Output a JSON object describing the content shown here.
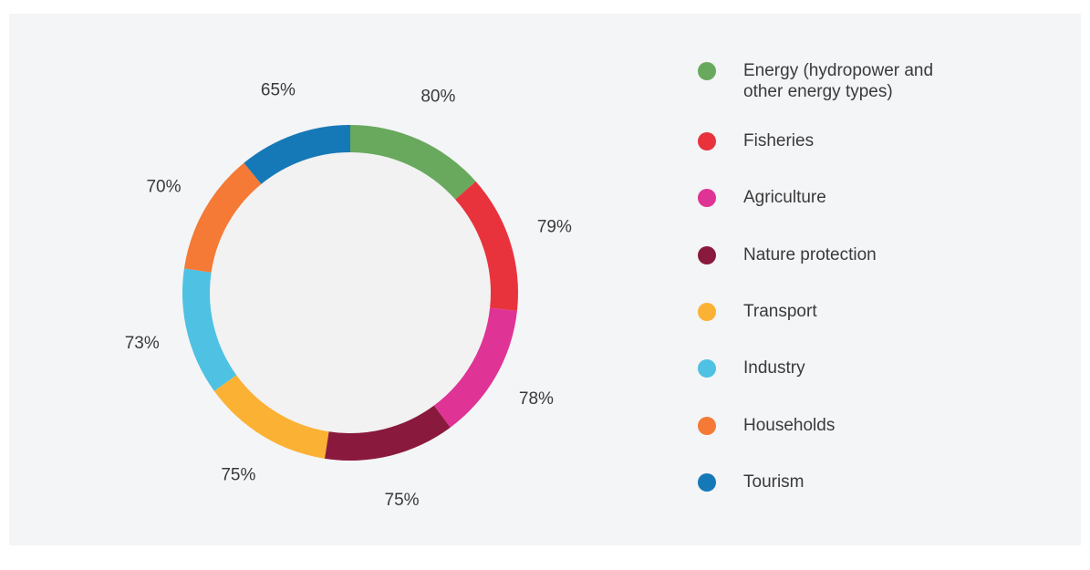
{
  "chart_data": {
    "type": "donut",
    "categories": [
      "Energy (hydropower and other energy types)",
      "Fisheries",
      "Agriculture",
      "Nature protection",
      "Transport",
      "Industry",
      "Households",
      "Tourism"
    ],
    "values": [
      80,
      79,
      78,
      75,
      75,
      73,
      70,
      65
    ],
    "value_labels": [
      "80%",
      "79%",
      "78%",
      "75%",
      "75%",
      "73%",
      "70%",
      "65%"
    ],
    "colors": [
      "#69a95e",
      "#e8333d",
      "#df3395",
      "#8a1a3d",
      "#fbb134",
      "#4fc1e2",
      "#f47a36",
      "#1679b7"
    ]
  }
}
